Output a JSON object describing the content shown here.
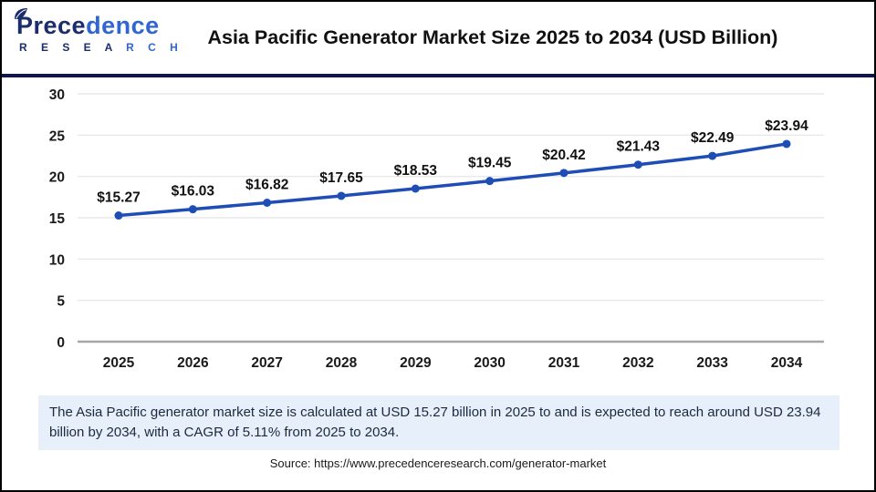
{
  "header": {
    "title": "Asia Pacific Generator Market Size 2025 to 2034 (USD Billion)",
    "logo": {
      "line1_dark": "Prece",
      "line1_light": "dence",
      "line2_dark": "R E S E A ",
      "line2_light": "R C H"
    }
  },
  "chart_data": {
    "type": "line",
    "title": "Asia Pacific Generator Market Size 2025 to 2034 (USD Billion)",
    "categories": [
      "2025",
      "2026",
      "2027",
      "2028",
      "2029",
      "2030",
      "2031",
      "2032",
      "2033",
      "2034"
    ],
    "values": [
      15.27,
      16.03,
      16.82,
      17.65,
      18.53,
      19.45,
      20.42,
      21.43,
      22.49,
      23.94
    ],
    "data_labels": [
      "$15.27",
      "$16.03",
      "$16.82",
      "$17.65",
      "$18.53",
      "$19.45",
      "$20.42",
      "$21.43",
      "$22.49",
      "$23.94"
    ],
    "xlabel": "",
    "ylabel": "",
    "ylim": [
      0,
      30
    ],
    "yticks": [
      0,
      5,
      10,
      15,
      20,
      25,
      30
    ],
    "grid": "on",
    "legend": "none",
    "line_color": "#1e4eb5",
    "marker": "circle",
    "gridline_color": "#e4e4e4",
    "baseline_color": "#a6a6a6",
    "tick_label_color": "#1a1a1a",
    "data_label_color": "#111111"
  },
  "footer": {
    "description": "The Asia Pacific generator market size is calculated at USD 15.27 billion in 2025 to and is expected to reach around USD 23.94 billion by 2034, with a CAGR of 5.11% from 2025 to 2034.",
    "source": "Source: https://www.precedenceresearch.com/generator-market"
  },
  "colors": {
    "divider": "#0e164d",
    "logo_dark": "#1c2d6e",
    "logo_light": "#2f66d4",
    "desc_bg": "#e7f0fa",
    "outer_border": "#000000"
  }
}
